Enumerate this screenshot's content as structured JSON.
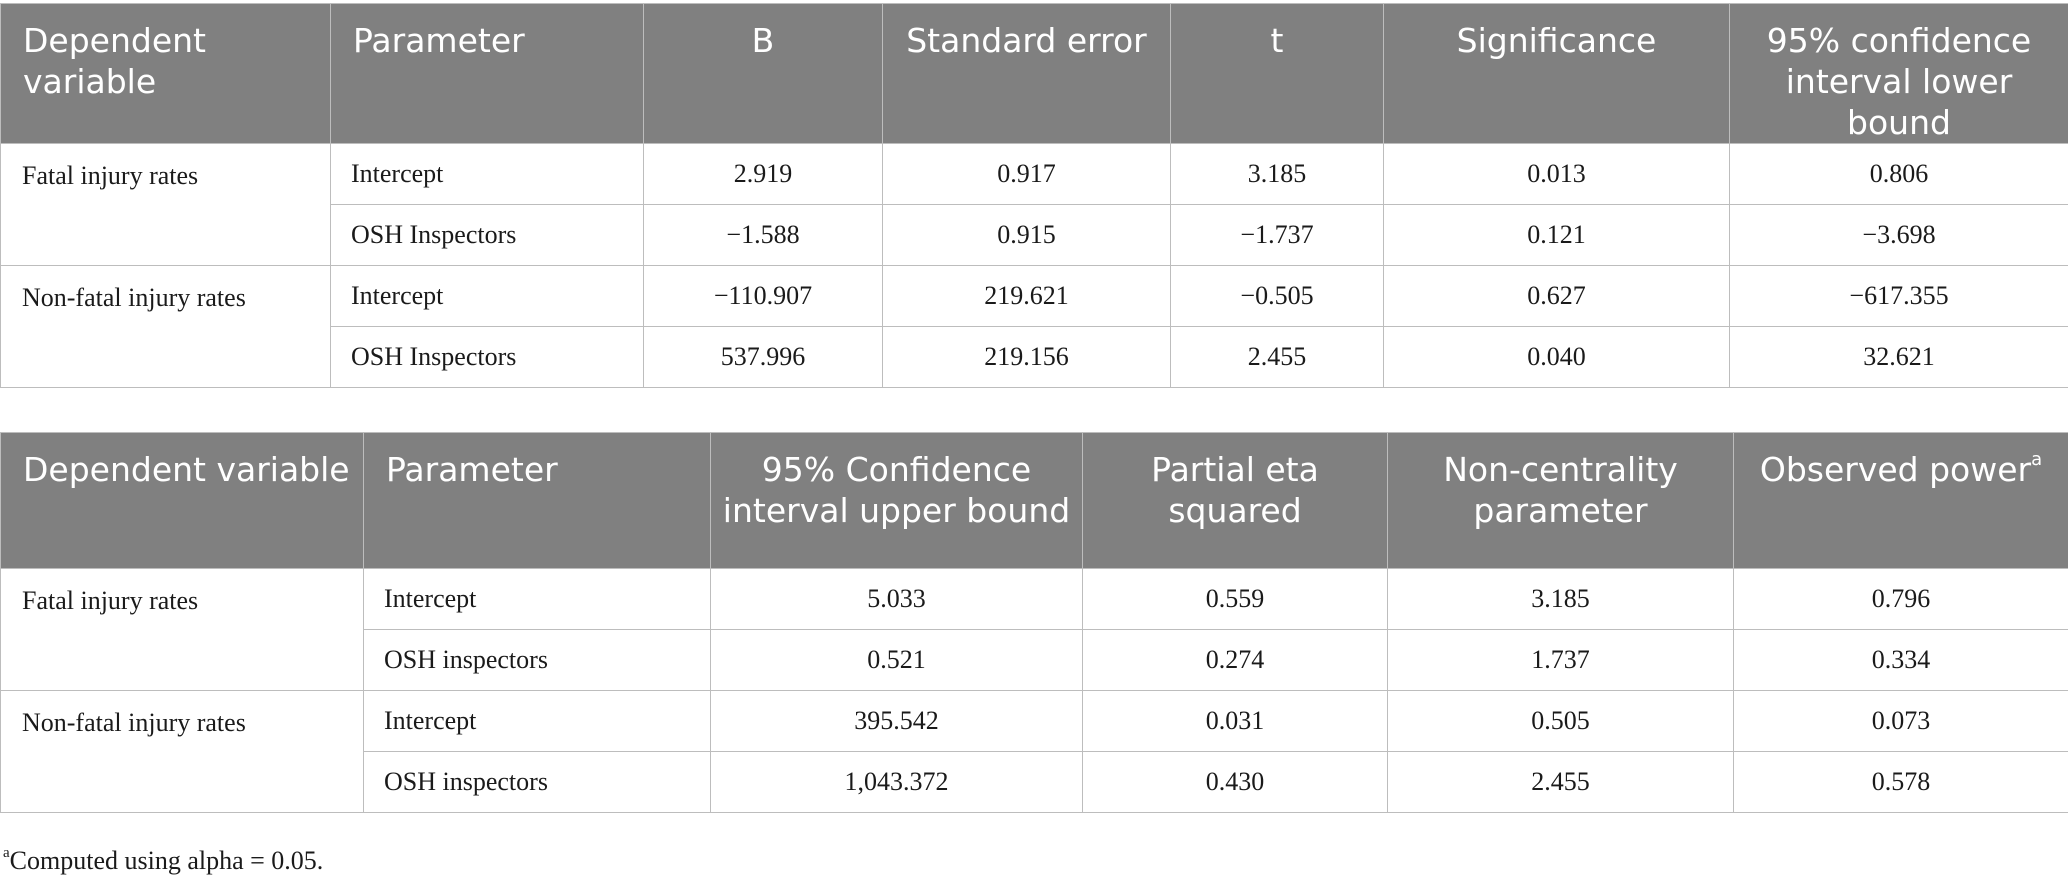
{
  "table1": {
    "headers": [
      "Dependent variable",
      "Parameter",
      "B",
      "Standard error",
      "t",
      "Significance",
      "95% confidence interval lower bound"
    ],
    "groups": [
      {
        "dependent_variable": "Fatal injury rates",
        "rows": [
          {
            "parameter": "Intercept",
            "values": [
              "2.919",
              "0.917",
              "3.185",
              "0.013",
              "0.806"
            ]
          },
          {
            "parameter": "OSH Inspectors",
            "values": [
              "−1.588",
              "0.915",
              "−1.737",
              "0.121",
              "−3.698"
            ]
          }
        ]
      },
      {
        "dependent_variable": "Non-fatal injury rates",
        "rows": [
          {
            "parameter": "Intercept",
            "values": [
              "−110.907",
              "219.621",
              "−0.505",
              "0.627",
              "−617.355"
            ]
          },
          {
            "parameter": "OSH Inspectors",
            "values": [
              "537.996",
              "219.156",
              "2.455",
              "0.040",
              "32.621"
            ]
          }
        ]
      }
    ]
  },
  "table2": {
    "headers": [
      "Dependent variable",
      "Parameter",
      "95% Confidence interval upper bound",
      "Partial eta squared",
      "Non-centrality parameter",
      "Observed power"
    ],
    "header_footnote_mark": "a",
    "groups": [
      {
        "dependent_variable": "Fatal injury rates",
        "rows": [
          {
            "parameter": "Intercept",
            "values": [
              "5.033",
              "0.559",
              "3.185",
              "0.796"
            ]
          },
          {
            "parameter": "OSH inspectors",
            "values": [
              "0.521",
              "0.274",
              "1.737",
              "0.334"
            ]
          }
        ]
      },
      {
        "dependent_variable": "Non-fatal injury rates",
        "rows": [
          {
            "parameter": "Intercept",
            "values": [
              "395.542",
              "0.031",
              "0.505",
              "0.073"
            ]
          },
          {
            "parameter": "OSH inspectors",
            "values": [
              "1,043.372",
              "0.430",
              "2.455",
              "0.578"
            ]
          }
        ]
      }
    ]
  },
  "footnote": {
    "mark": "a",
    "text": "Computed using alpha = 0.05."
  },
  "colors": {
    "header_bg": "#808080",
    "header_text": "#ffffff",
    "border": "#bdbdbd"
  }
}
